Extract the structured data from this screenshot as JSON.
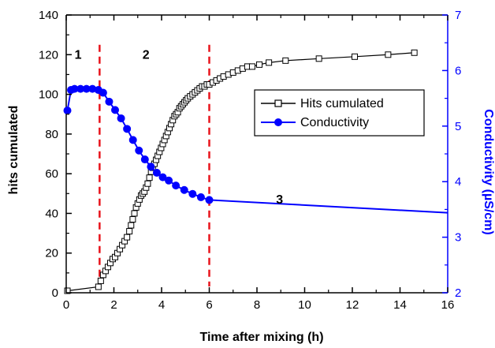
{
  "chart_data": {
    "type": "line",
    "xlabel": "Time after mixing (h)",
    "ylabel_left": "hits cumulated",
    "ylabel_right": "Conductivity (µS/cm)",
    "xlim": [
      0,
      16
    ],
    "ylim_left": [
      0,
      140
    ],
    "ylim_right": [
      2,
      7
    ],
    "x_ticks": [
      0,
      2,
      4,
      6,
      8,
      10,
      12,
      14,
      16
    ],
    "y_ticks_left": [
      0,
      20,
      40,
      60,
      80,
      100,
      120,
      140
    ],
    "y_ticks_right": [
      2,
      3,
      4,
      5,
      6,
      7
    ],
    "grid": false,
    "legend_position": "right",
    "colors": {
      "hits": "#000000",
      "conductivity": "#0000ff",
      "dividers": "#e8141c"
    },
    "series": [
      {
        "name": "Hits cumulated",
        "axis": "left",
        "marker": "open-square",
        "x": [
          0.05,
          1.35,
          1.45,
          1.55,
          1.65,
          1.75,
          1.85,
          1.95,
          2.05,
          2.15,
          2.25,
          2.35,
          2.45,
          2.55,
          2.65,
          2.72,
          2.79,
          2.86,
          2.93,
          3.0,
          3.07,
          3.14,
          3.21,
          3.28,
          3.35,
          3.42,
          3.49,
          3.56,
          3.63,
          3.7,
          3.77,
          3.84,
          3.91,
          3.98,
          4.05,
          4.12,
          4.19,
          4.26,
          4.33,
          4.4,
          4.47,
          4.54,
          4.61,
          4.68,
          4.75,
          4.82,
          4.89,
          4.96,
          5.03,
          5.1,
          5.2,
          5.3,
          5.4,
          5.5,
          5.6,
          5.7,
          5.8,
          5.9,
          6.0,
          6.15,
          6.3,
          6.45,
          6.6,
          6.8,
          7.0,
          7.2,
          7.4,
          7.6,
          7.8,
          8.1,
          8.5,
          9.2,
          10.6,
          12.1,
          13.5,
          14.6
        ],
        "values": [
          1,
          3,
          6,
          9,
          11,
          13,
          15,
          17,
          18,
          20,
          22,
          24,
          26,
          28,
          31,
          34,
          37,
          40,
          43,
          45,
          47,
          49,
          50,
          51,
          53,
          55,
          58,
          61,
          63,
          65,
          67,
          69,
          71,
          73,
          75,
          77,
          79,
          81,
          83,
          85,
          87,
          89,
          90,
          91,
          93,
          94,
          95,
          96,
          97,
          98,
          99,
          100,
          101,
          102,
          103,
          104,
          104,
          105,
          105,
          106,
          107,
          108,
          109,
          110,
          111,
          112,
          113,
          114,
          114,
          115,
          116,
          117,
          118,
          119,
          120,
          121
        ]
      },
      {
        "name": "Conductivity",
        "axis": "right",
        "marker": "filled-circle",
        "x": [
          0.05,
          0.2,
          0.35,
          0.6,
          0.85,
          1.1,
          1.35,
          1.55,
          1.8,
          2.05,
          2.3,
          2.55,
          2.8,
          3.05,
          3.3,
          3.55,
          3.8,
          4.05,
          4.3,
          4.6,
          4.95,
          5.3,
          5.65,
          6.0,
          16.0
        ],
        "values": [
          5.28,
          5.65,
          5.67,
          5.67,
          5.67,
          5.67,
          5.65,
          5.6,
          5.44,
          5.29,
          5.14,
          4.95,
          4.75,
          4.56,
          4.4,
          4.27,
          4.16,
          4.08,
          4.02,
          3.93,
          3.85,
          3.78,
          3.72,
          3.67,
          3.44
        ]
      }
    ],
    "dividers_x": [
      1.4,
      6.0
    ],
    "regions": [
      {
        "label": "1",
        "x": 0.35,
        "y": 118
      },
      {
        "label": "2",
        "x": 3.2,
        "y": 118
      },
      {
        "label": "3",
        "x": 8.8,
        "y": 45
      }
    ],
    "legend": {
      "entries": [
        "Hits cumulated",
        "Conductivity"
      ]
    }
  }
}
